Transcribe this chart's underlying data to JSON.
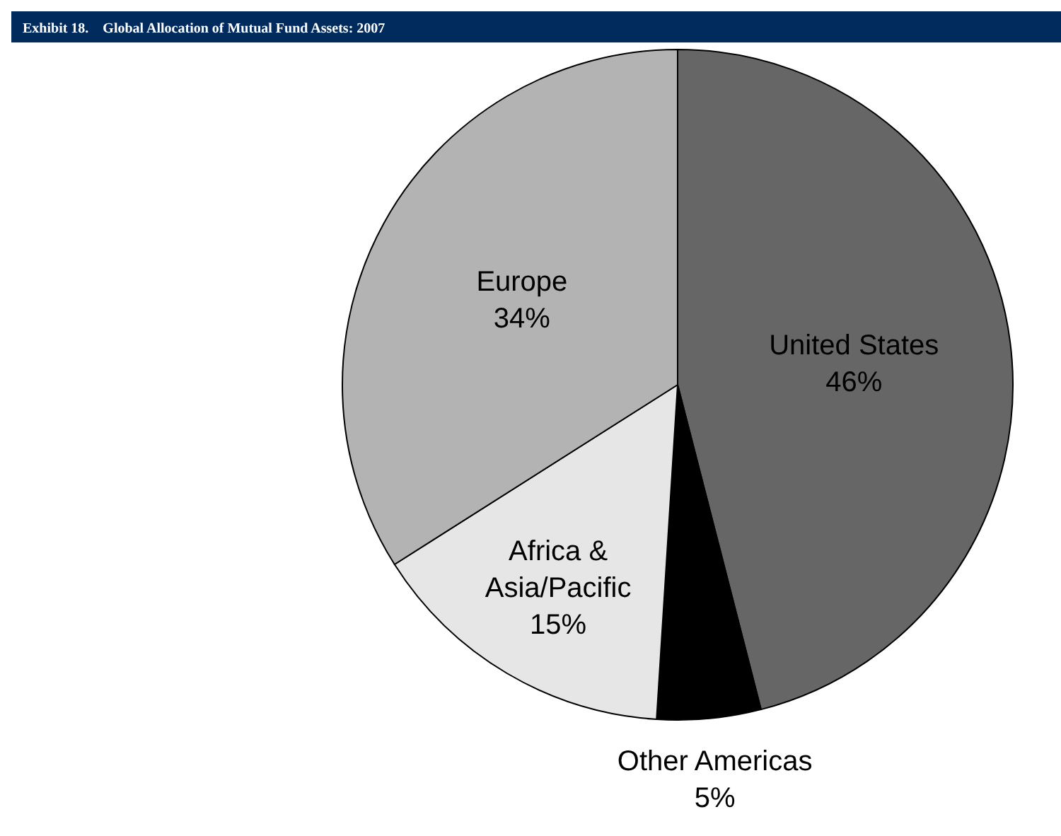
{
  "chart_data": {
    "type": "pie",
    "title": "Exhibit 18.    Global Allocation of Mutual Fund Assets: 2007",
    "categories": [
      "United States",
      "Other Americas",
      "Africa & Asia/Pacific",
      "Europe"
    ],
    "values": [
      46,
      5,
      15,
      34
    ],
    "colors": [
      "#666666",
      "#000000",
      "#e6e6e6",
      "#b3b3b3"
    ],
    "value_labels": [
      "46%",
      "5%",
      "15%",
      "34%"
    ]
  }
}
